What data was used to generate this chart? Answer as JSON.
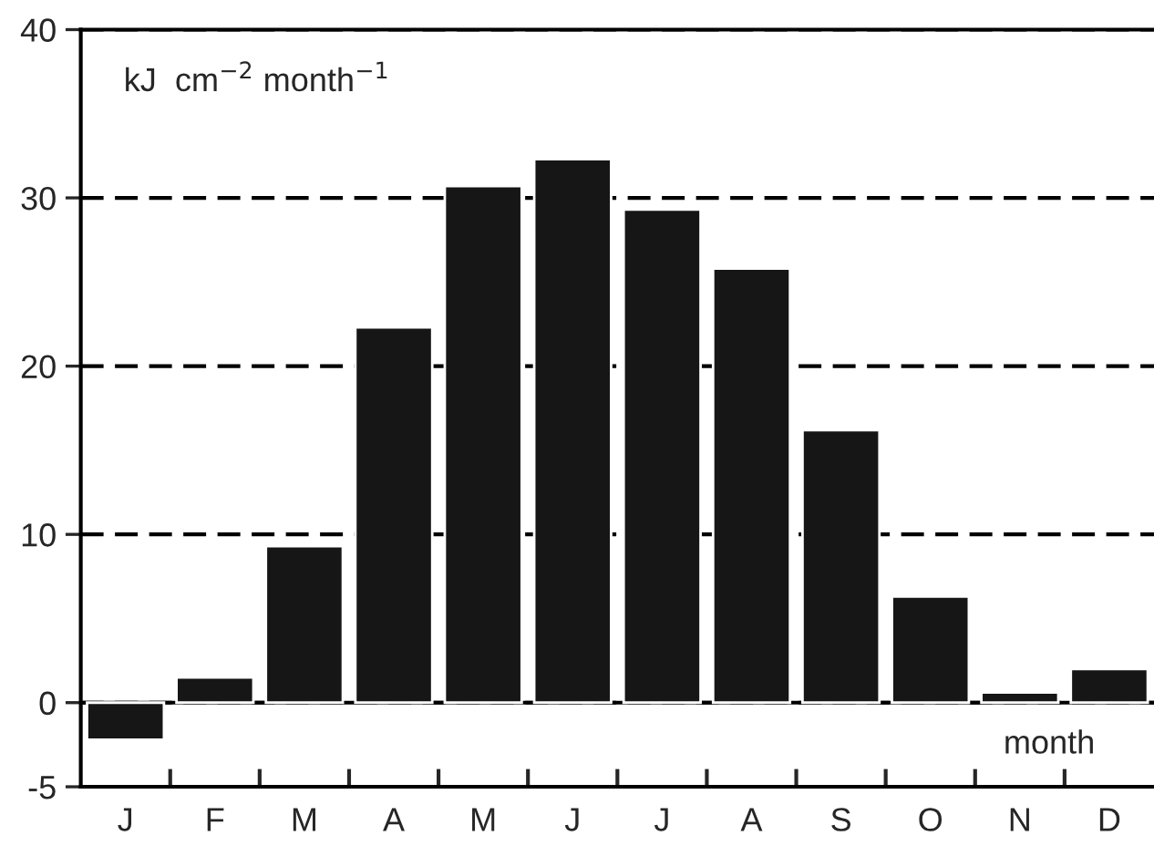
{
  "chart_data": {
    "type": "bar",
    "categories": [
      "J",
      "F",
      "M",
      "A",
      "M",
      "J",
      "J",
      "A",
      "S",
      "O",
      "N",
      "D"
    ],
    "values": [
      -2.2,
      1.5,
      9.3,
      22.3,
      30.7,
      32.3,
      29.3,
      25.8,
      16.2,
      6.3,
      0.6,
      2.0
    ],
    "color": "#161616",
    "ylabel": "kJ  cm$^{−2}$ month$^{−1}$",
    "xlabel": "month",
    "ylim": [
      -5,
      40
    ],
    "yticks": [
      -5,
      0,
      10,
      20,
      30,
      40
    ],
    "grid": "y",
    "line_style": "dashed",
    "ref_lines": [
      {
        "axis": "y",
        "value": 0,
        "line_style": "solid"
      }
    ],
    "legend": false
  }
}
